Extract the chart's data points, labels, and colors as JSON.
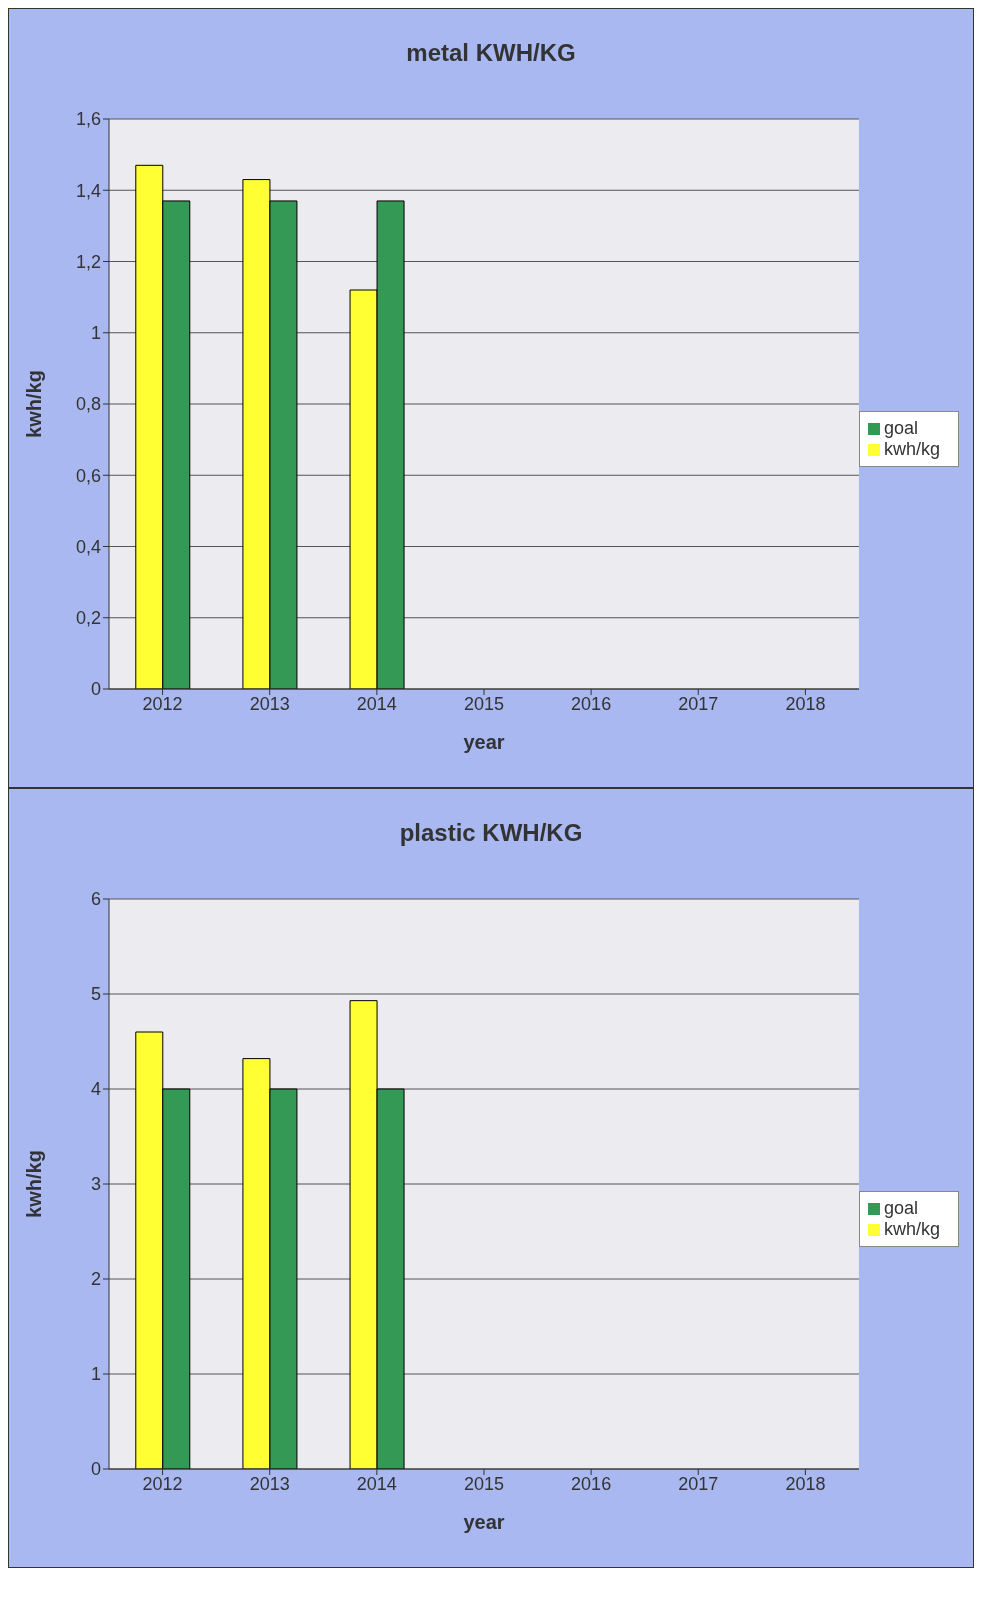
{
  "chart_data": [
    {
      "type": "bar",
      "title": "metal KWH/KG",
      "xlabel": "year",
      "ylabel": "kwh/kg",
      "categories": [
        "2012",
        "2013",
        "2014",
        "2015",
        "2016",
        "2017",
        "2018"
      ],
      "series": [
        {
          "name": "kwh/kg",
          "color": "#ffff33",
          "values": [
            1.47,
            1.43,
            1.12,
            null,
            null,
            null,
            null
          ]
        },
        {
          "name": "goal",
          "color": "#339955",
          "values": [
            1.37,
            1.37,
            1.37,
            null,
            null,
            null,
            null
          ]
        }
      ],
      "ylim": [
        0,
        1.6
      ],
      "yticks": [
        0,
        {
          "value": 0.2,
          "label": "0,2"
        },
        {
          "value": 0.4,
          "label": "0,4"
        },
        {
          "value": 0.6,
          "label": "0,6"
        },
        {
          "value": 0.8,
          "label": "0,8"
        },
        1,
        {
          "value": 1.2,
          "label": "1,2"
        },
        {
          "value": 1.4,
          "label": "1,4"
        },
        {
          "value": 1.6,
          "label": "1,6"
        }
      ],
      "grid": "y",
      "legend": "right"
    },
    {
      "type": "bar",
      "title": "plastic KWH/KG",
      "xlabel": "year",
      "ylabel": "kwh/kg",
      "categories": [
        "2012",
        "2013",
        "2014",
        "2015",
        "2016",
        "2017",
        "2018"
      ],
      "series": [
        {
          "name": "kwh/kg",
          "color": "#ffff33",
          "values": [
            4.6,
            4.32,
            4.93,
            null,
            null,
            null,
            null
          ]
        },
        {
          "name": "goal",
          "color": "#339955",
          "values": [
            4.0,
            4.0,
            4.0,
            null,
            null,
            null,
            null
          ]
        }
      ],
      "ylim": [
        0,
        6
      ],
      "yticks": [
        0,
        1,
        2,
        3,
        4,
        5,
        6
      ],
      "grid": "y",
      "legend": "right"
    }
  ]
}
